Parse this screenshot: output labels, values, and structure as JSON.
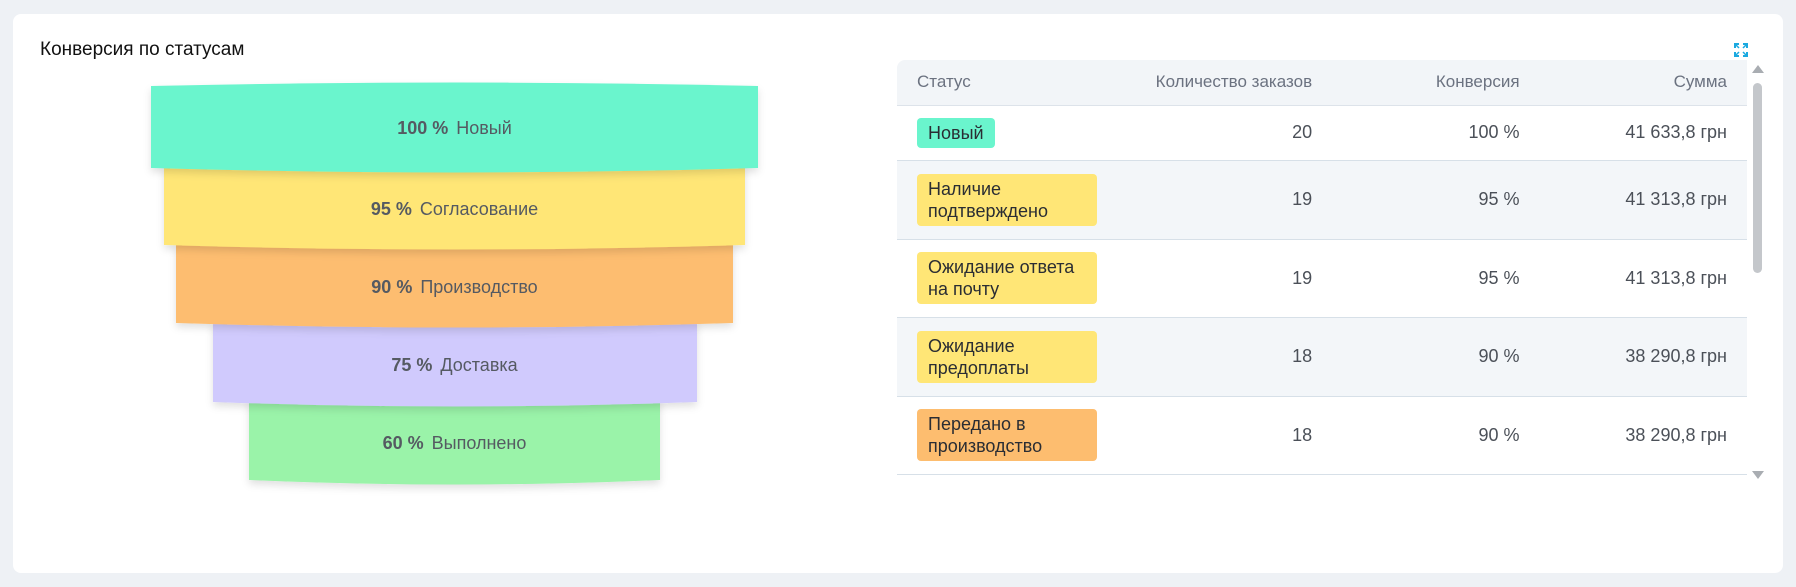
{
  "widget": {
    "title": "Конверсия по статусам",
    "expand_icon": "expand-icon"
  },
  "funnel": [
    {
      "percent": "100 %",
      "label": "Новый",
      "color": "#6af5cd"
    },
    {
      "percent": "95 %",
      "label": "Согласование",
      "color": "#ffe676"
    },
    {
      "percent": "90 %",
      "label": "Производство",
      "color": "#fdbd6f"
    },
    {
      "percent": "75 %",
      "label": "Доставка",
      "color": "#d0cafd"
    },
    {
      "percent": "60 %",
      "label": "Выполнено",
      "color": "#9af3a9"
    }
  ],
  "table": {
    "headers": {
      "status": "Статус",
      "orders": "Количество заказов",
      "conversion": "Конверсия",
      "sum": "Сумма"
    },
    "rows": [
      {
        "status": "Новый",
        "orders": "20",
        "conversion": "100 %",
        "sum": "41 633,8 грн",
        "color": "#6af5cd"
      },
      {
        "status": "Наличие подтверждено",
        "orders": "19",
        "conversion": "95 %",
        "sum": "41 313,8 грн",
        "color": "#ffe676"
      },
      {
        "status": "Ожидание ответа на почту",
        "orders": "19",
        "conversion": "95 %",
        "sum": "41 313,8 грн",
        "color": "#ffe676"
      },
      {
        "status": "Ожидание предоплаты",
        "orders": "18",
        "conversion": "90 %",
        "sum": "38 290,8 грн",
        "color": "#ffe676"
      },
      {
        "status": "Передано в производство",
        "orders": "18",
        "conversion": "90 %",
        "sum": "38 290,8 грн",
        "color": "#fdbd6f"
      }
    ]
  }
}
